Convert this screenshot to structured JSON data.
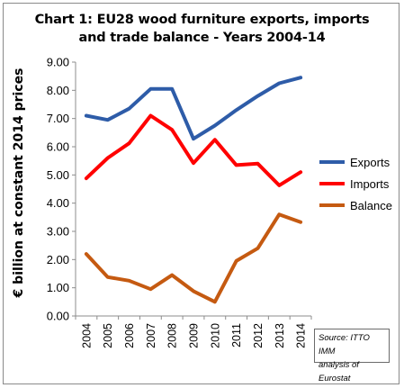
{
  "title_line1": "Chart 1: EU28 wood furniture exports, imports",
  "title_line2": "and trade balance - Years 2004-14",
  "source_line1": "Source: ITTO IMM",
  "source_line2": "analysis of Eurostat",
  "chart_data": {
    "type": "line",
    "title": "Chart 1: EU28 wood furniture exports, imports and trade balance - Years 2004-14",
    "ylabel": "€ billion at constant 2014 prices",
    "xlabel": "",
    "x": [
      "2004",
      "2005",
      "2006",
      "2007",
      "2008",
      "2009",
      "2010",
      "2011",
      "2012",
      "2013",
      "2014"
    ],
    "ylim": [
      0,
      9
    ],
    "yticks": [
      "0.00",
      "1.00",
      "2.00",
      "3.00",
      "4.00",
      "5.00",
      "6.00",
      "7.00",
      "8.00",
      "9.00"
    ],
    "grid": false,
    "legend_position": "right",
    "series": [
      {
        "name": "Exports",
        "color": "#2e5ca8",
        "values": [
          7.1,
          6.95,
          7.35,
          8.05,
          8.05,
          6.28,
          6.75,
          7.3,
          7.8,
          8.25,
          8.45
        ]
      },
      {
        "name": "Imports",
        "color": "#ff0000",
        "values": [
          4.88,
          5.6,
          6.12,
          7.1,
          6.6,
          5.42,
          6.25,
          5.35,
          5.4,
          4.63,
          5.1
        ]
      },
      {
        "name": "Balance",
        "color": "#c55a11",
        "values": [
          2.2,
          1.38,
          1.25,
          0.95,
          1.45,
          0.88,
          0.5,
          1.95,
          2.4,
          3.6,
          3.33
        ]
      }
    ]
  }
}
